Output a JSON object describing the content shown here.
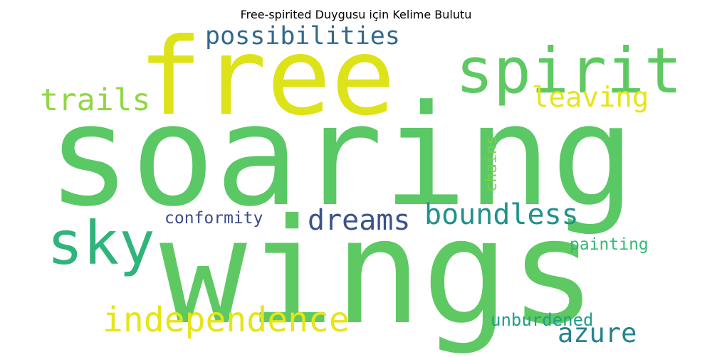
{
  "title": "Free-spirited Duygusu için Kelime Bulutu",
  "words": {
    "soaring": {
      "text": "soaring",
      "color": "#5ac864"
    },
    "wings": {
      "text": "wings",
      "color": "#5ec962"
    },
    "free": {
      "text": "free",
      "color": "#dde318"
    },
    "spirit": {
      "text": "spirit",
      "color": "#5ec962"
    },
    "sky": {
      "text": "sky",
      "color": "#2fb47c"
    },
    "independence": {
      "text": "independence",
      "color": "#e7e419"
    },
    "possibilities": {
      "text": "possibilities",
      "color": "#31688e"
    },
    "trails": {
      "text": "trails",
      "color": "#90d743"
    },
    "leaving": {
      "text": "leaving",
      "color": "#e7e419"
    },
    "dreams": {
      "text": "dreams",
      "color": "#3b528b"
    },
    "boundless": {
      "text": "boundless",
      "color": "#21918c"
    },
    "conformity": {
      "text": "conformity",
      "color": "#3e4a89"
    },
    "chains": {
      "text": "chains",
      "color": "#7ad151"
    },
    "painting": {
      "text": "painting",
      "color": "#35b779"
    },
    "unburdened": {
      "text": "unburdened",
      "color": "#1f9e89"
    },
    "azure": {
      "text": "azure",
      "color": "#26828e"
    }
  }
}
